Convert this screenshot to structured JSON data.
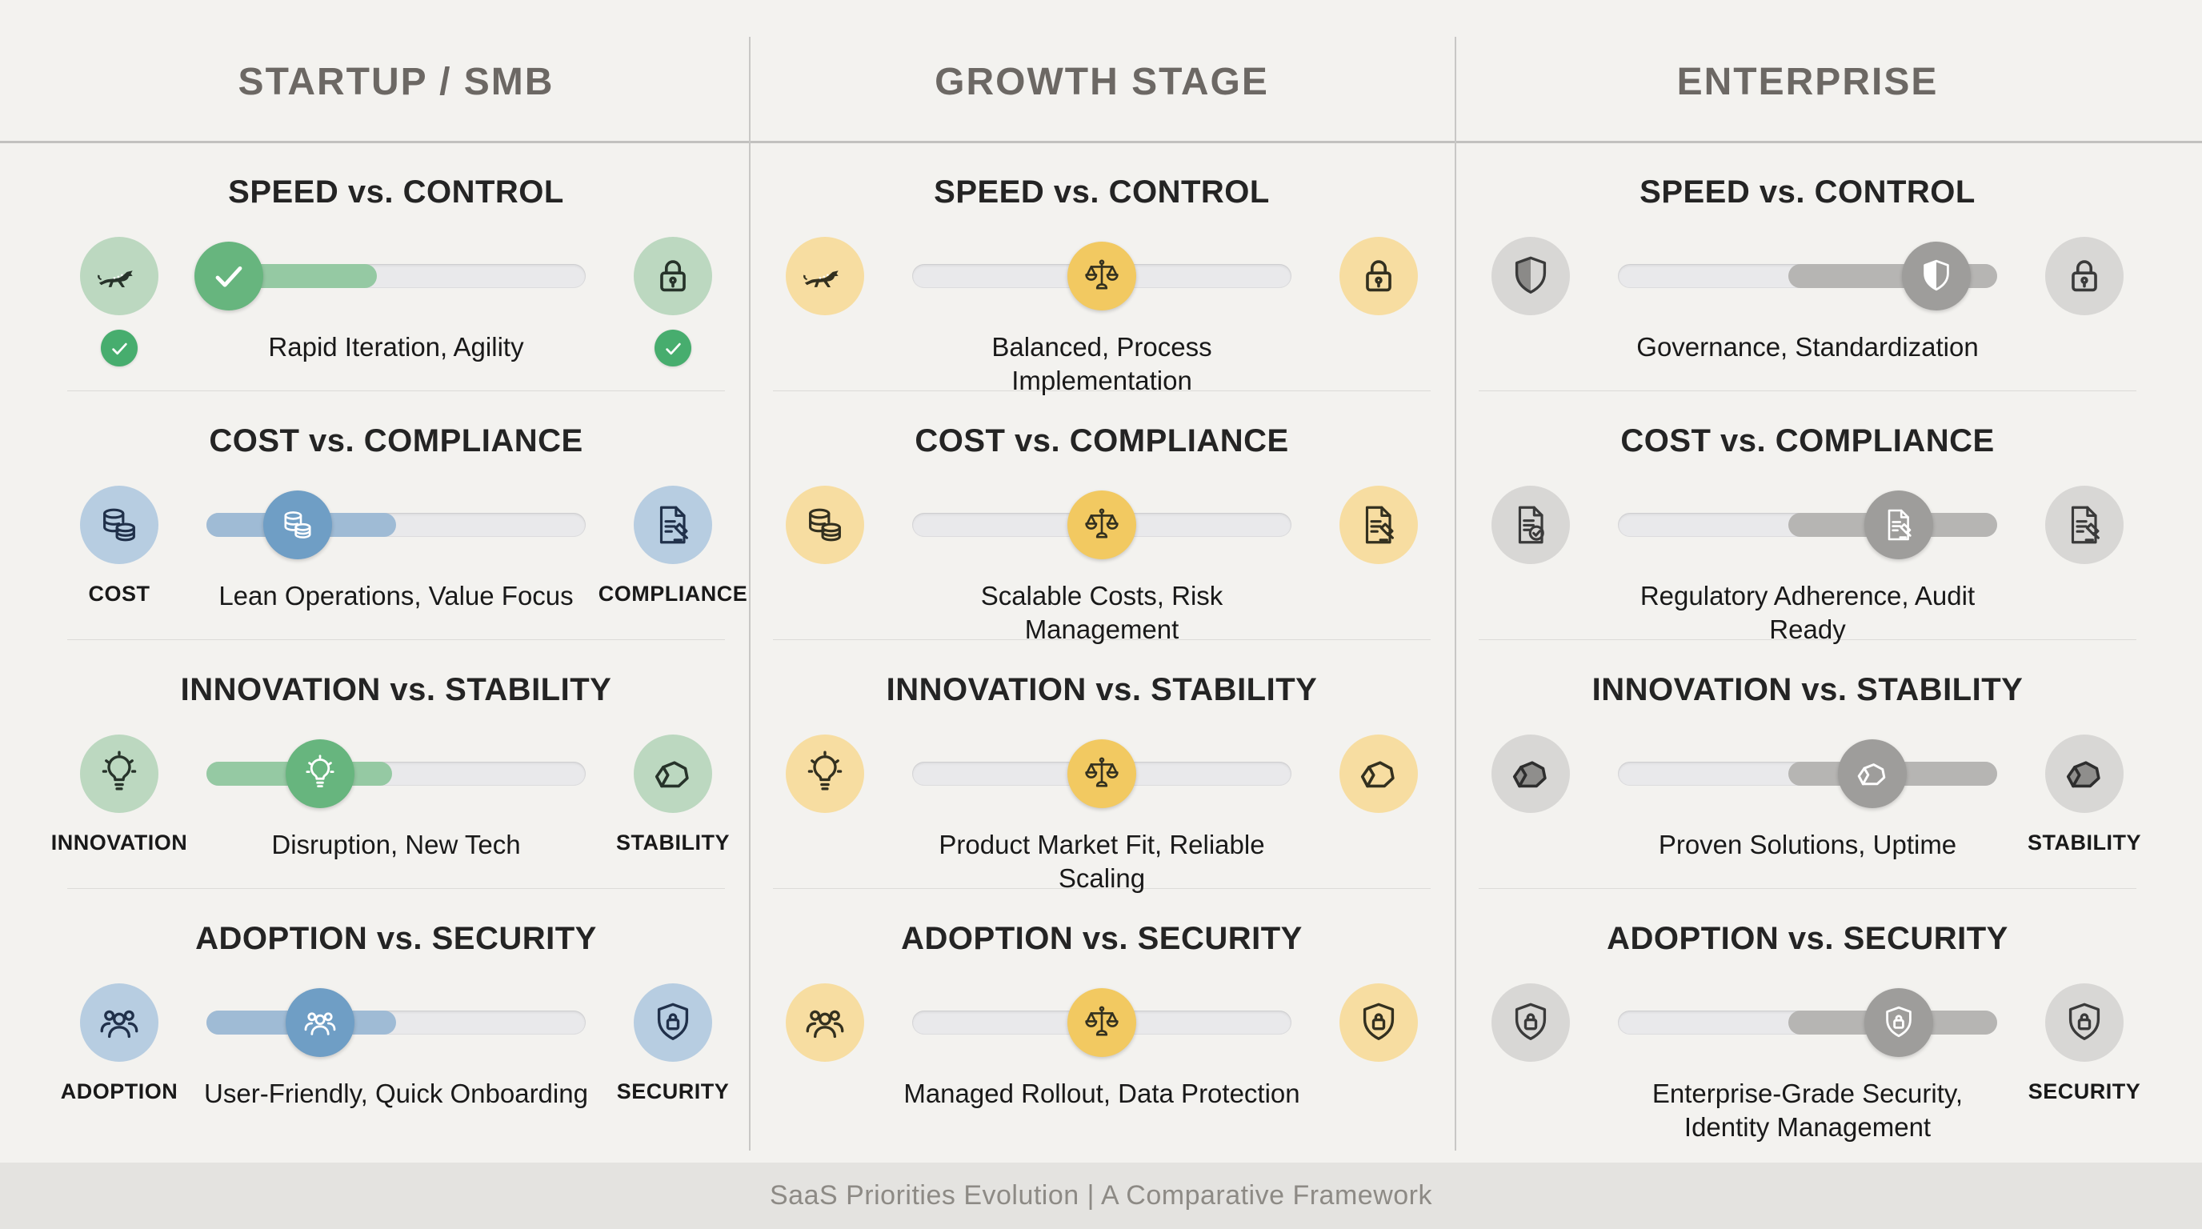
{
  "page": {
    "bg": "#f3f2ef",
    "divider_color": "#c8c7c5",
    "track_color": "#e9e9eb",
    "footer": {
      "text": "SaaS Priorities Evolution | A Comparative Framework",
      "bg": "#e4e3e0",
      "text_color": "#8d8a85"
    }
  },
  "columns": [
    {
      "title": "STARTUP / SMB",
      "rows": [
        {
          "heading": "SPEED vs. CONTROL",
          "description": "Rapid Iteration, Agility",
          "left": {
            "icon": "cheetah-icon",
            "circle": "#bcd8c0",
            "stroke": "#27332a",
            "label": null,
            "badge": {
              "icon": "check-icon",
              "color": "#47ad6e"
            }
          },
          "right": {
            "icon": "lock-icon",
            "circle": "#bcd8c0",
            "stroke": "#27332a",
            "label": null,
            "badge": {
              "icon": "check-icon",
              "color": "#47ad6e"
            }
          },
          "slider": {
            "fill": {
              "start": 0,
              "end": 45,
              "color": "#95c9a3"
            },
            "knob": {
              "pos": 6,
              "color": "#67b57e",
              "icon": "check-icon",
              "stroke": "#ffffff"
            }
          }
        },
        {
          "heading": "COST vs. COMPLIANCE",
          "description": "Lean Operations, Value Focus",
          "left": {
            "icon": "coins-icon",
            "circle": "#b7cde1",
            "stroke": "#20304a",
            "label": "COST",
            "badge": null
          },
          "right": {
            "icon": "doc-gavel-icon",
            "circle": "#b7cde1",
            "stroke": "#20304a",
            "label": "COMPLIANCE",
            "badge": null
          },
          "slider": {
            "fill": {
              "start": 0,
              "end": 50,
              "color": "#9fbbd5"
            },
            "knob": {
              "pos": 24,
              "color": "#6f9ec5",
              "icon": "coins-icon",
              "stroke": "#ffffff"
            }
          }
        },
        {
          "heading": "INNOVATION vs. STABILITY",
          "description": "Disruption, New Tech",
          "left": {
            "icon": "bulb-icon",
            "circle": "#bcd8c0",
            "stroke": "#27332a",
            "label": "INNOVATION",
            "badge": null
          },
          "right": {
            "icon": "rock-icon",
            "circle": "#bcd8c0",
            "stroke": "#27332a",
            "label": "STABILITY",
            "badge": null
          },
          "slider": {
            "fill": {
              "start": 0,
              "end": 49,
              "color": "#95c9a3"
            },
            "knob": {
              "pos": 30,
              "color": "#67b57e",
              "icon": "bulb-icon",
              "stroke": "#ffffff"
            }
          }
        },
        {
          "heading": "ADOPTION vs. SECURITY",
          "description": "User-Friendly, Quick Onboarding",
          "left": {
            "icon": "people-icon",
            "circle": "#b7cde1",
            "stroke": "#20304a",
            "label": "ADOPTION",
            "badge": null
          },
          "right": {
            "icon": "shield-lock-icon",
            "circle": "#b7cde1",
            "stroke": "#20304a",
            "label": "SECURITY",
            "badge": null
          },
          "slider": {
            "fill": {
              "start": 0,
              "end": 50,
              "color": "#9fbbd5"
            },
            "knob": {
              "pos": 30,
              "color": "#6f9ec5",
              "icon": "people-icon",
              "stroke": "#ffffff"
            }
          }
        }
      ]
    },
    {
      "title": "GROWTH STAGE",
      "rows": [
        {
          "heading": "SPEED vs. CONTROL",
          "description": "Balanced, Process Implementation",
          "left": {
            "icon": "cheetah-icon",
            "circle": "#f7dda1",
            "stroke": "#33301f",
            "label": null,
            "badge": null
          },
          "right": {
            "icon": "lock-icon",
            "circle": "#f7dda1",
            "stroke": "#33301f",
            "label": null,
            "badge": null
          },
          "slider": {
            "fill": null,
            "knob": {
              "pos": 50,
              "color": "#f2c961",
              "icon": "scale-icon",
              "stroke": "#33301f"
            }
          }
        },
        {
          "heading": "COST vs. COMPLIANCE",
          "description": "Scalable Costs, Risk Management",
          "left": {
            "icon": "coins-icon",
            "circle": "#f7dda1",
            "stroke": "#33301f",
            "label": null,
            "badge": null
          },
          "right": {
            "icon": "doc-gavel-icon",
            "circle": "#f7dda1",
            "stroke": "#33301f",
            "label": null,
            "badge": null
          },
          "slider": {
            "fill": null,
            "knob": {
              "pos": 50,
              "color": "#f2c961",
              "icon": "scale-icon",
              "stroke": "#33301f"
            }
          }
        },
        {
          "heading": "INNOVATION vs. STABILITY",
          "description": "Product Market Fit, Reliable Scaling",
          "left": {
            "icon": "bulb-icon",
            "circle": "#f7dda1",
            "stroke": "#33301f",
            "label": null,
            "badge": null
          },
          "right": {
            "icon": "rock-icon",
            "circle": "#f7dda1",
            "stroke": "#33301f",
            "label": null,
            "badge": null
          },
          "slider": {
            "fill": null,
            "knob": {
              "pos": 50,
              "color": "#f2c961",
              "icon": "scale-icon",
              "stroke": "#33301f"
            }
          }
        },
        {
          "heading": "ADOPTION vs. SECURITY",
          "description": "Managed Rollout, Data Protection",
          "left": {
            "icon": "people-icon",
            "circle": "#f7dda1",
            "stroke": "#33301f",
            "label": null,
            "badge": null
          },
          "right": {
            "icon": "shield-lock-icon",
            "circle": "#f7dda1",
            "stroke": "#33301f",
            "label": null,
            "badge": null
          },
          "slider": {
            "fill": null,
            "knob": {
              "pos": 50,
              "color": "#f2c961",
              "icon": "scale-icon",
              "stroke": "#33301f"
            }
          }
        }
      ]
    },
    {
      "title": "ENTERPRISE",
      "rows": [
        {
          "heading": "SPEED vs. CONTROL",
          "description": "Governance, Standardization",
          "left": {
            "icon": "shield-half-icon",
            "circle": "#d8d7d5",
            "stroke": "#3a3a3a",
            "fill": "#8b8a88",
            "label": null,
            "badge": null
          },
          "right": {
            "icon": "lock-icon",
            "circle": "#d8d7d5",
            "stroke": "#3a3a3a",
            "label": null,
            "badge": null
          },
          "slider": {
            "fill": {
              "start": 45,
              "end": 100,
              "color": "#b6b5b3"
            },
            "knob": {
              "pos": 84,
              "color": "#9e9d9b",
              "icon": "shield-half-icon",
              "stroke": "#ffffff",
              "fill": "#ffffff"
            }
          }
        },
        {
          "heading": "COST vs. COMPLIANCE",
          "description": "Regulatory Adherence, Audit Ready",
          "left": {
            "icon": "doc-check-icon",
            "circle": "#d8d7d5",
            "stroke": "#3a3a3a",
            "label": null,
            "badge": null
          },
          "right": {
            "icon": "doc-gavel-icon",
            "circle": "#d8d7d5",
            "stroke": "#3a3a3a",
            "label": null,
            "badge": null
          },
          "slider": {
            "fill": {
              "start": 45,
              "end": 100,
              "color": "#b6b5b3"
            },
            "knob": {
              "pos": 74,
              "color": "#9e9d9b",
              "icon": "doc-gavel-icon",
              "stroke": "#ffffff"
            }
          }
        },
        {
          "heading": "INNOVATION vs. STABILITY",
          "description": "Proven Solutions, Uptime",
          "left": {
            "icon": "rock-icon",
            "circle": "#d8d7d5",
            "stroke": "#2e2e2e",
            "fill": "#8f8e8c",
            "label": null,
            "badge": null
          },
          "right": {
            "icon": "rock-icon",
            "circle": "#d8d7d5",
            "stroke": "#2e2e2e",
            "fill": "#8f8e8c",
            "label": "STABILITY",
            "badge": null
          },
          "slider": {
            "fill": {
              "start": 45,
              "end": 100,
              "color": "#b6b5b3"
            },
            "knob": {
              "pos": 67,
              "color": "#9e9d9b",
              "icon": "rock-icon",
              "stroke": "#ffffff"
            }
          }
        },
        {
          "heading": "ADOPTION vs. SECURITY",
          "description": "Enterprise-Grade Security, Identity Management",
          "left": {
            "icon": "shield-lock-icon",
            "circle": "#d8d7d5",
            "stroke": "#3a3a3a",
            "label": null,
            "badge": null
          },
          "right": {
            "icon": "shield-lock-icon",
            "circle": "#d8d7d5",
            "stroke": "#3a3a3a",
            "label": "SECURITY",
            "badge": null
          },
          "slider": {
            "fill": {
              "start": 45,
              "end": 100,
              "color": "#b6b5b3"
            },
            "knob": {
              "pos": 74,
              "color": "#9e9d9b",
              "icon": "shield-lock-icon",
              "stroke": "#ffffff"
            }
          }
        }
      ]
    }
  ]
}
